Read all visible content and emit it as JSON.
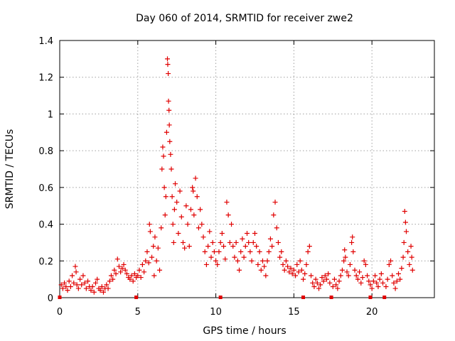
{
  "chart_data": {
    "type": "scatter",
    "title": "Day 060 of 2014, SRMTID for receiver zwe2",
    "xlabel": "GPS time / hours",
    "ylabel": "SRMTID / TECUs",
    "xlim": [
      0,
      24
    ],
    "ylim": [
      0,
      1.4
    ],
    "x_ticks": [
      0,
      5,
      10,
      15,
      20
    ],
    "x_tick_labels": [
      "0",
      "5",
      "10",
      "15",
      "20"
    ],
    "y_ticks": [
      0,
      0.2,
      0.4,
      0.6,
      0.8,
      1.0,
      1.2,
      1.4
    ],
    "y_tick_labels": [
      "0",
      "0.2",
      "0.4",
      "0.6",
      "0.8",
      "1",
      "1.2",
      "1.4"
    ],
    "grid": true,
    "marker": "plus",
    "color": "#e00000",
    "zero_markers_x": [
      0,
      4.9,
      10.3,
      15.6,
      17.4,
      19.9,
      20.8
    ],
    "series": [
      {
        "name": "SRMTID",
        "points": [
          [
            0.1,
            0.07
          ],
          [
            0.2,
            0.05
          ],
          [
            0.3,
            0.08
          ],
          [
            0.4,
            0.06
          ],
          [
            0.5,
            0.04
          ],
          [
            0.6,
            0.09
          ],
          [
            0.7,
            0.06
          ],
          [
            0.8,
            0.12
          ],
          [
            0.9,
            0.08
          ],
          [
            1.0,
            0.17
          ],
          [
            1.05,
            0.14
          ],
          [
            1.1,
            0.07
          ],
          [
            1.2,
            0.05
          ],
          [
            1.3,
            0.1
          ],
          [
            1.4,
            0.07
          ],
          [
            1.5,
            0.12
          ],
          [
            1.6,
            0.08
          ],
          [
            1.7,
            0.05
          ],
          [
            1.8,
            0.09
          ],
          [
            1.9,
            0.06
          ],
          [
            2.0,
            0.04
          ],
          [
            2.1,
            0.06
          ],
          [
            2.2,
            0.03
          ],
          [
            2.3,
            0.08
          ],
          [
            2.4,
            0.1
          ],
          [
            2.5,
            0.05
          ],
          [
            2.6,
            0.04
          ],
          [
            2.7,
            0.06
          ],
          [
            2.8,
            0.03
          ],
          [
            2.9,
            0.05
          ],
          [
            3.0,
            0.07
          ],
          [
            3.1,
            0.05
          ],
          [
            3.2,
            0.09
          ],
          [
            3.3,
            0.12
          ],
          [
            3.4,
            0.1
          ],
          [
            3.5,
            0.15
          ],
          [
            3.6,
            0.13
          ],
          [
            3.7,
            0.21
          ],
          [
            3.8,
            0.17
          ],
          [
            3.9,
            0.14
          ],
          [
            4.0,
            0.16
          ],
          [
            4.1,
            0.18
          ],
          [
            4.2,
            0.15
          ],
          [
            4.3,
            0.13
          ],
          [
            4.4,
            0.11
          ],
          [
            4.5,
            0.1
          ],
          [
            4.6,
            0.12
          ],
          [
            4.7,
            0.09
          ],
          [
            4.8,
            0.13
          ],
          [
            4.9,
            0.11
          ],
          [
            5.0,
            0.12
          ],
          [
            5.1,
            0.15
          ],
          [
            5.2,
            0.11
          ],
          [
            5.3,
            0.18
          ],
          [
            5.4,
            0.14
          ],
          [
            5.5,
            0.2
          ],
          [
            5.6,
            0.25
          ],
          [
            5.7,
            0.19
          ],
          [
            5.75,
            0.4
          ],
          [
            5.8,
            0.36
          ],
          [
            5.9,
            0.22
          ],
          [
            6.0,
            0.28
          ],
          [
            6.05,
            0.12
          ],
          [
            6.1,
            0.33
          ],
          [
            6.2,
            0.2
          ],
          [
            6.3,
            0.27
          ],
          [
            6.4,
            0.15
          ],
          [
            6.5,
            0.38
          ],
          [
            6.55,
            0.7
          ],
          [
            6.6,
            0.82
          ],
          [
            6.65,
            0.77
          ],
          [
            6.7,
            0.6
          ],
          [
            6.75,
            0.45
          ],
          [
            6.8,
            0.55
          ],
          [
            6.85,
            0.9
          ],
          [
            6.9,
            1.3
          ],
          [
            6.92,
            1.27
          ],
          [
            6.95,
            1.22
          ],
          [
            6.97,
            1.07
          ],
          [
            7.0,
            1.02
          ],
          [
            7.02,
            0.94
          ],
          [
            7.05,
            0.85
          ],
          [
            7.1,
            0.78
          ],
          [
            7.15,
            0.7
          ],
          [
            7.2,
            0.55
          ],
          [
            7.25,
            0.4
          ],
          [
            7.3,
            0.3
          ],
          [
            7.35,
            0.48
          ],
          [
            7.4,
            0.62
          ],
          [
            7.5,
            0.52
          ],
          [
            7.6,
            0.35
          ],
          [
            7.7,
            0.58
          ],
          [
            7.8,
            0.44
          ],
          [
            7.9,
            0.3
          ],
          [
            8.0,
            0.27
          ],
          [
            8.1,
            0.5
          ],
          [
            8.2,
            0.4
          ],
          [
            8.3,
            0.28
          ],
          [
            8.4,
            0.48
          ],
          [
            8.5,
            0.6
          ],
          [
            8.55,
            0.58
          ],
          [
            8.6,
            0.45
          ],
          [
            8.7,
            0.65
          ],
          [
            8.8,
            0.55
          ],
          [
            8.9,
            0.38
          ],
          [
            9.0,
            0.48
          ],
          [
            9.1,
            0.4
          ],
          [
            9.2,
            0.33
          ],
          [
            9.3,
            0.25
          ],
          [
            9.4,
            0.18
          ],
          [
            9.5,
            0.28
          ],
          [
            9.6,
            0.36
          ],
          [
            9.7,
            0.22
          ],
          [
            9.8,
            0.3
          ],
          [
            9.9,
            0.25
          ],
          [
            10.0,
            0.2
          ],
          [
            10.1,
            0.18
          ],
          [
            10.2,
            0.25
          ],
          [
            10.3,
            0.3
          ],
          [
            10.4,
            0.35
          ],
          [
            10.5,
            0.28
          ],
          [
            10.6,
            0.21
          ],
          [
            10.7,
            0.52
          ],
          [
            10.8,
            0.45
          ],
          [
            10.9,
            0.3
          ],
          [
            11.0,
            0.4
          ],
          [
            11.1,
            0.28
          ],
          [
            11.2,
            0.22
          ],
          [
            11.3,
            0.3
          ],
          [
            11.4,
            0.2
          ],
          [
            11.5,
            0.15
          ],
          [
            11.6,
            0.25
          ],
          [
            11.7,
            0.32
          ],
          [
            11.8,
            0.22
          ],
          [
            11.9,
            0.28
          ],
          [
            12.0,
            0.35
          ],
          [
            12.1,
            0.3
          ],
          [
            12.2,
            0.25
          ],
          [
            12.3,
            0.2
          ],
          [
            12.4,
            0.3
          ],
          [
            12.5,
            0.35
          ],
          [
            12.6,
            0.28
          ],
          [
            12.7,
            0.18
          ],
          [
            12.8,
            0.25
          ],
          [
            12.9,
            0.15
          ],
          [
            13.0,
            0.2
          ],
          [
            13.1,
            0.17
          ],
          [
            13.2,
            0.12
          ],
          [
            13.3,
            0.2
          ],
          [
            13.4,
            0.25
          ],
          [
            13.5,
            0.32
          ],
          [
            13.6,
            0.28
          ],
          [
            13.7,
            0.45
          ],
          [
            13.8,
            0.52
          ],
          [
            13.9,
            0.38
          ],
          [
            14.0,
            0.3
          ],
          [
            14.1,
            0.22
          ],
          [
            14.2,
            0.25
          ],
          [
            14.3,
            0.18
          ],
          [
            14.4,
            0.15
          ],
          [
            14.5,
            0.2
          ],
          [
            14.6,
            0.17
          ],
          [
            14.7,
            0.14
          ],
          [
            14.8,
            0.16
          ],
          [
            14.9,
            0.13
          ],
          [
            15.0,
            0.15
          ],
          [
            15.1,
            0.12
          ],
          [
            15.2,
            0.18
          ],
          [
            15.3,
            0.14
          ],
          [
            15.4,
            0.2
          ],
          [
            15.5,
            0.15
          ],
          [
            15.6,
            0.1
          ],
          [
            15.7,
            0.13
          ],
          [
            15.8,
            0.18
          ],
          [
            15.9,
            0.25
          ],
          [
            16.0,
            0.28
          ],
          [
            16.1,
            0.12
          ],
          [
            16.2,
            0.08
          ],
          [
            16.3,
            0.06
          ],
          [
            16.4,
            0.1
          ],
          [
            16.5,
            0.08
          ],
          [
            16.6,
            0.05
          ],
          [
            16.7,
            0.07
          ],
          [
            16.8,
            0.11
          ],
          [
            16.9,
            0.09
          ],
          [
            17.0,
            0.12
          ],
          [
            17.1,
            0.1
          ],
          [
            17.2,
            0.13
          ],
          [
            17.3,
            0.08
          ],
          [
            17.5,
            0.06
          ],
          [
            17.6,
            0.1
          ],
          [
            17.7,
            0.07
          ],
          [
            17.8,
            0.05
          ],
          [
            17.9,
            0.09
          ],
          [
            18.0,
            0.12
          ],
          [
            18.1,
            0.15
          ],
          [
            18.2,
            0.2
          ],
          [
            18.25,
            0.26
          ],
          [
            18.3,
            0.22
          ],
          [
            18.4,
            0.14
          ],
          [
            18.5,
            0.12
          ],
          [
            18.6,
            0.18
          ],
          [
            18.7,
            0.3
          ],
          [
            18.75,
            0.33
          ],
          [
            18.8,
            0.25
          ],
          [
            18.9,
            0.15
          ],
          [
            19.0,
            0.12
          ],
          [
            19.1,
            0.1
          ],
          [
            19.2,
            0.14
          ],
          [
            19.3,
            0.08
          ],
          [
            19.4,
            0.11
          ],
          [
            19.5,
            0.2
          ],
          [
            19.6,
            0.18
          ],
          [
            19.7,
            0.12
          ],
          [
            19.8,
            0.09
          ],
          [
            19.9,
            0.07
          ],
          [
            20.0,
            0.05
          ],
          [
            20.1,
            0.09
          ],
          [
            20.2,
            0.12
          ],
          [
            20.3,
            0.08
          ],
          [
            20.4,
            0.06
          ],
          [
            20.5,
            0.1
          ],
          [
            20.6,
            0.13
          ],
          [
            20.7,
            0.08
          ],
          [
            20.9,
            0.06
          ],
          [
            21.0,
            0.1
          ],
          [
            21.1,
            0.18
          ],
          [
            21.2,
            0.2
          ],
          [
            21.3,
            0.12
          ],
          [
            21.4,
            0.08
          ],
          [
            21.5,
            0.05
          ],
          [
            21.6,
            0.09
          ],
          [
            21.7,
            0.13
          ],
          [
            21.8,
            0.1
          ],
          [
            21.9,
            0.16
          ],
          [
            22.0,
            0.22
          ],
          [
            22.05,
            0.3
          ],
          [
            22.1,
            0.47
          ],
          [
            22.15,
            0.41
          ],
          [
            22.2,
            0.36
          ],
          [
            22.3,
            0.25
          ],
          [
            22.4,
            0.18
          ],
          [
            22.5,
            0.28
          ],
          [
            22.55,
            0.22
          ],
          [
            22.6,
            0.15
          ]
        ]
      }
    ]
  }
}
